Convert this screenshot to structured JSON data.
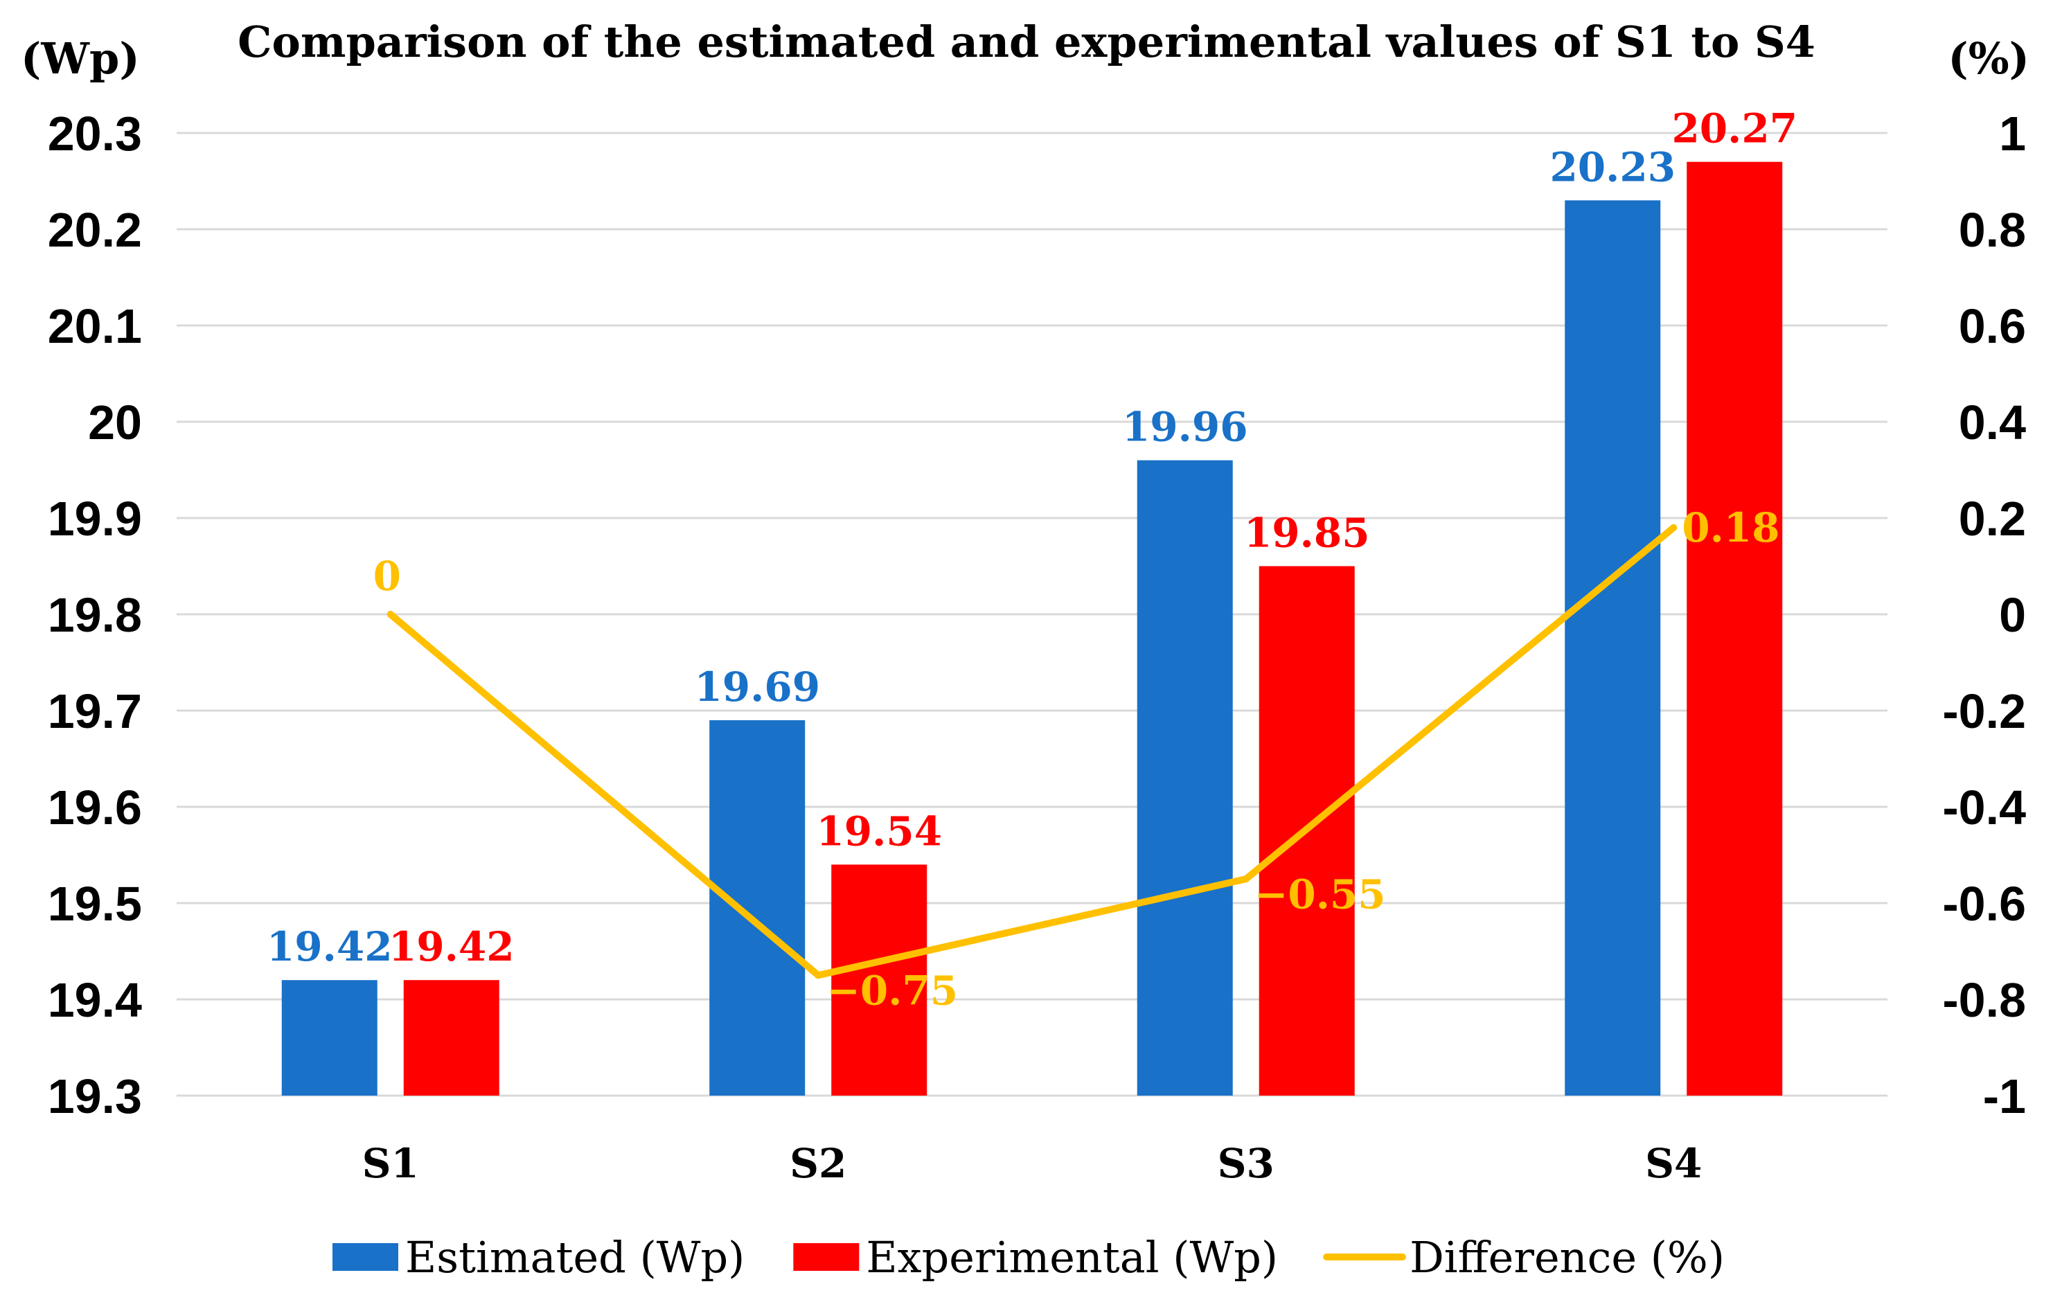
{
  "chart_data": {
    "type": "bar",
    "title": "Comparison of the estimated and experimental values of S1 to S4",
    "ylabel_left": "(Wp)",
    "ylabel_right": "(%)",
    "categories": [
      "S1",
      "S2",
      "S3",
      "S4"
    ],
    "ylim_left": [
      19.3,
      20.3
    ],
    "yticks_left": [
      "19.3",
      "19.4",
      "19.5",
      "19.6",
      "19.7",
      "19.8",
      "19.9",
      "20",
      "20.1",
      "20.2",
      "20.3"
    ],
    "ylim_right": [
      -1,
      1
    ],
    "yticks_right": [
      "-1",
      "-0.8",
      "-0.6",
      "-0.4",
      "-0.2",
      "0",
      "0.2",
      "0.4",
      "0.6",
      "0.8",
      "1"
    ],
    "grid": true,
    "legend_position": "bottom",
    "series": [
      {
        "name": "Estimated (Wp)",
        "type": "bar",
        "axis": "left",
        "color": "#1971c8",
        "values": [
          19.42,
          19.69,
          19.96,
          20.23
        ],
        "labels": [
          "19.42",
          "19.69",
          "19.96",
          "20.23"
        ]
      },
      {
        "name": "Experimental (Wp)",
        "type": "bar",
        "axis": "left",
        "color": "#ff0000",
        "values": [
          19.42,
          19.54,
          19.85,
          20.27
        ],
        "labels": [
          "19.42",
          "19.54",
          "19.85",
          "20.27"
        ]
      },
      {
        "name": "Difference (%)",
        "type": "line",
        "axis": "right",
        "color": "#ffc000",
        "values": [
          0,
          -0.75,
          -0.55,
          0.18
        ],
        "labels": [
          "0",
          "−0.75",
          "−0.55",
          "0.18"
        ]
      }
    ]
  }
}
